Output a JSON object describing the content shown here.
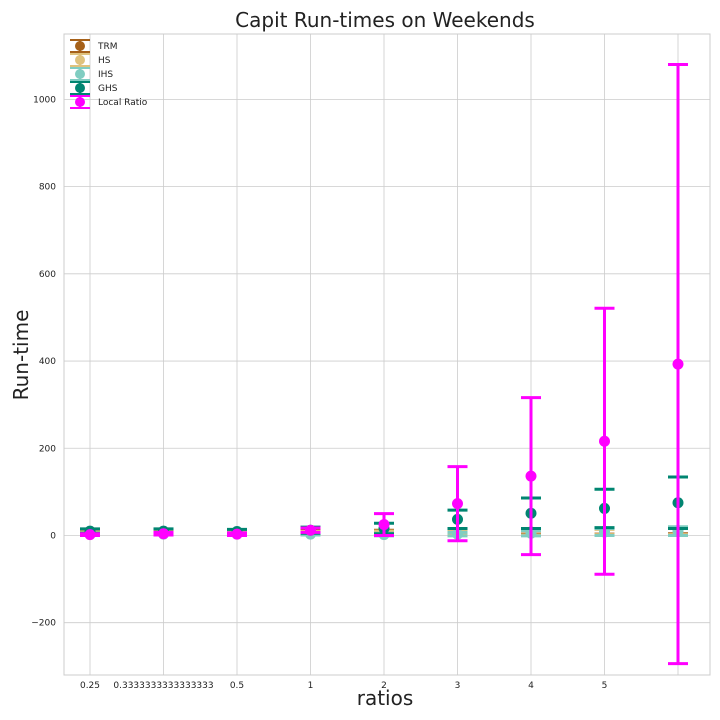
{
  "chart_data": {
    "type": "scatter",
    "title": "Capit Run-times on Weekends",
    "xlabel": "ratios",
    "ylabel": "Run-time",
    "categories": [
      "0.25",
      "0.3333333333333333",
      "0.5",
      "1",
      "2",
      "3",
      "4",
      "5",
      ""
    ],
    "ylim": [
      -320,
      1150
    ],
    "yticks": [
      -200,
      0,
      200,
      400,
      600,
      800,
      1000
    ],
    "ytick_labels": [
      "−200",
      "0",
      "200",
      "400",
      "600",
      "800",
      "1000"
    ],
    "grid": true,
    "legend_position": "top-left",
    "series": [
      {
        "name": "TRM",
        "color": "#a6611a",
        "values": [
          6,
          6,
          6,
          7,
          8,
          6,
          8,
          9,
          10
        ],
        "errors": [
          3,
          3,
          3,
          4,
          4,
          4,
          5,
          6,
          6
        ]
      },
      {
        "name": "HS",
        "color": "#dfc27d",
        "values": [
          5,
          5,
          5,
          6,
          6,
          5,
          6,
          8,
          9
        ],
        "errors": [
          3,
          3,
          3,
          3,
          4,
          4,
          5,
          6,
          7
        ]
      },
      {
        "name": "IHS",
        "color": "#80cdc1",
        "values": [
          3,
          3,
          3,
          3,
          2,
          3,
          5,
          8,
          10
        ],
        "errors": [
          2,
          2,
          2,
          2,
          3,
          4,
          6,
          8,
          10
        ]
      },
      {
        "name": "GHS",
        "color": "#018571",
        "values": [
          10,
          10,
          9,
          12,
          16,
          37,
          51,
          62,
          75
        ],
        "errors": [
          5,
          5,
          5,
          7,
          12,
          21,
          35,
          44,
          59
        ]
      },
      {
        "name": "Local Ratio",
        "color": "#ff00ff",
        "values": [
          2,
          4,
          3,
          12,
          25,
          73,
          136,
          216,
          393
        ],
        "errors": [
          2,
          3,
          3,
          5,
          25,
          85,
          180,
          305,
          687
        ]
      }
    ]
  }
}
